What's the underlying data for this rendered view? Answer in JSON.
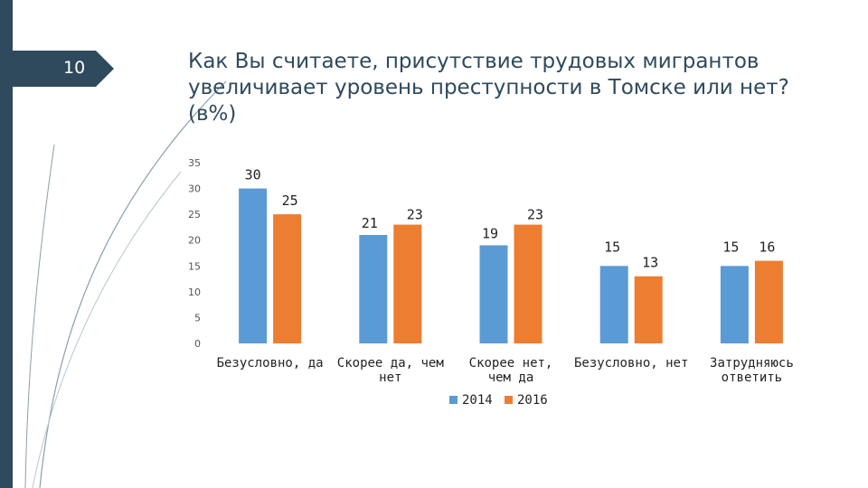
{
  "slide": {
    "number": "10"
  },
  "title_lines": [
    "Как Вы считаете, присутствие трудовых мигрантов",
    "увеличивает уровень преступности в Томске или нет?",
    "(в%)"
  ],
  "colors": {
    "series_2014": "#5b9bd5",
    "series_2016": "#ed7d31",
    "accent": "#2e4a5c"
  },
  "chart_data": {
    "type": "bar",
    "title": "Как Вы считаете, присутствие трудовых мигрантов увеличивает уровень преступности в Томске или нет? (в%)",
    "categories": [
      [
        "Безусловно, да"
      ],
      [
        "Скорее да, чем",
        "нет"
      ],
      [
        "Скорее нет,",
        "чем да"
      ],
      [
        "Безусловно, нет"
      ],
      [
        "Затрудняюсь",
        "ответить"
      ]
    ],
    "series": [
      {
        "name": "2014",
        "values": [
          30,
          21,
          19,
          15,
          15
        ]
      },
      {
        "name": "2016",
        "values": [
          25,
          23,
          23,
          13,
          16
        ]
      }
    ],
    "ylim": [
      0,
      35
    ],
    "yticks": [
      "0",
      "5",
      "10",
      "15",
      "20",
      "25",
      "30",
      "35"
    ],
    "grid": false,
    "legend": "bottom",
    "xlabel": "",
    "ylabel": ""
  }
}
